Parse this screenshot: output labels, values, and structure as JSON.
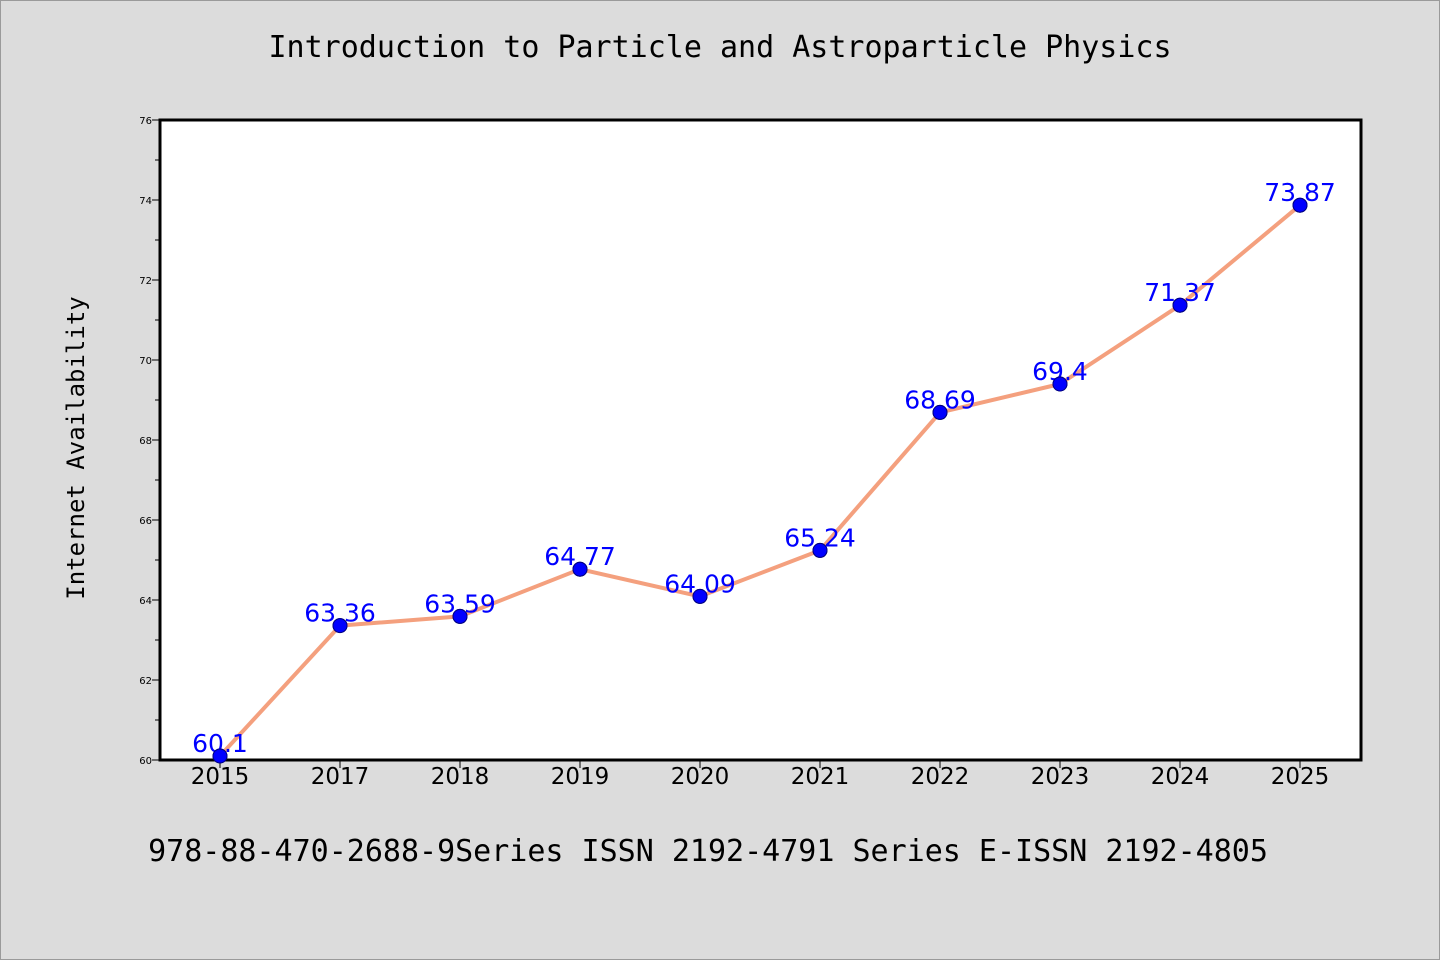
{
  "chart_data": {
    "type": "line",
    "title": "Introduction to Particle and Astroparticle Physics",
    "xlabel": "",
    "ylabel": "Internet Availability",
    "categories": [
      "2015",
      "2017",
      "2018",
      "2019",
      "2020",
      "2021",
      "2022",
      "2023",
      "2024",
      "2025"
    ],
    "values": [
      60.1,
      63.36,
      63.59,
      64.77,
      64.09,
      65.24,
      68.69,
      69.4,
      71.37,
      73.87
    ],
    "data_labels": [
      "60.1",
      "63.36",
      "63.59",
      "64.77",
      "64.09",
      "65.24",
      "68.69",
      "69.4",
      "71.37",
      "73.87"
    ],
    "ylim": [
      60,
      76
    ],
    "yticks": [
      60,
      62,
      64,
      66,
      68,
      70,
      72,
      74,
      76
    ],
    "grid": false,
    "colors": {
      "line": "#f4a07e",
      "marker": "#0000ff",
      "marker_edge": "#000080",
      "label": "#0000ff",
      "background": "#dcdcdc",
      "plot_background": "#ffffff"
    }
  },
  "footer": "978-88-470-2688-9Series ISSN 2192-4791 Series E-ISSN 2192-4805"
}
